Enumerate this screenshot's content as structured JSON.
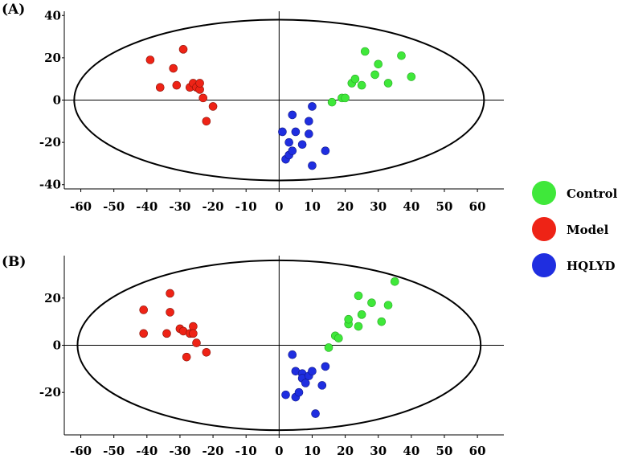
{
  "legend": [
    {
      "name": "Control",
      "color": "#3fe83a"
    },
    {
      "name": "Model",
      "color": "#ee2316"
    },
    {
      "name": "HQLYD",
      "color": "#1f2ee0"
    }
  ],
  "chart_data": [
    {
      "type": "scatter",
      "panel_label": "(A)",
      "xlim": [
        -65,
        68
      ],
      "ylim": [
        -42,
        42
      ],
      "x_ticks": [
        "-60",
        "-50",
        "-40",
        "-30",
        "-20",
        "-10",
        "0",
        "10",
        "20",
        "30",
        "40",
        "50",
        "60"
      ],
      "y_ticks": [
        "40",
        "20",
        "0",
        "-20",
        "-40"
      ],
      "ellipse": {
        "cx": 0,
        "cy": 0,
        "rx": 62,
        "ry": 38
      },
      "series": [
        {
          "name": "Control",
          "points": [
            [
              16,
              -1
            ],
            [
              19,
              1
            ],
            [
              20,
              1
            ],
            [
              22,
              8
            ],
            [
              23,
              10
            ],
            [
              25,
              7
            ],
            [
              26,
              23
            ],
            [
              29,
              12
            ],
            [
              30,
              17
            ],
            [
              33,
              8
            ],
            [
              37,
              21
            ],
            [
              40,
              11
            ]
          ]
        },
        {
          "name": "Model",
          "points": [
            [
              -39,
              19
            ],
            [
              -36,
              6
            ],
            [
              -32,
              15
            ],
            [
              -31,
              7
            ],
            [
              -29,
              24
            ],
            [
              -27,
              6
            ],
            [
              -26,
              8
            ],
            [
              -25,
              6
            ],
            [
              -24,
              5
            ],
            [
              -24,
              8
            ],
            [
              -23,
              1
            ],
            [
              -22,
              -10
            ],
            [
              -20,
              -3
            ]
          ]
        },
        {
          "name": "HQLYD",
          "points": [
            [
              1,
              -15
            ],
            [
              2,
              -28
            ],
            [
              3,
              -20
            ],
            [
              3,
              -26
            ],
            [
              4,
              -7
            ],
            [
              4,
              -24
            ],
            [
              5,
              -15
            ],
            [
              7,
              -21
            ],
            [
              9,
              -10
            ],
            [
              9,
              -16
            ],
            [
              10,
              -3
            ],
            [
              10,
              -31
            ],
            [
              14,
              -24
            ]
          ]
        }
      ]
    },
    {
      "type": "scatter",
      "panel_label": "(B)",
      "xlim": [
        -65,
        68
      ],
      "ylim": [
        -38,
        38
      ],
      "x_ticks": [
        "-60",
        "-50",
        "-40",
        "-30",
        "-20",
        "-10",
        "0",
        "10",
        "20",
        "30",
        "40",
        "50",
        "60"
      ],
      "y_ticks": [
        "20",
        "0",
        "-20"
      ],
      "ellipse": {
        "cx": 0,
        "cy": 0,
        "rx": 61,
        "ry": 36
      },
      "series": [
        {
          "name": "Control",
          "points": [
            [
              15,
              -1
            ],
            [
              17,
              4
            ],
            [
              18,
              3
            ],
            [
              21,
              9
            ],
            [
              21,
              11
            ],
            [
              24,
              8
            ],
            [
              24,
              21
            ],
            [
              25,
              13
            ],
            [
              28,
              18
            ],
            [
              31,
              10
            ],
            [
              33,
              17
            ],
            [
              35,
              27
            ]
          ]
        },
        {
          "name": "Model",
          "points": [
            [
              -41,
              15
            ],
            [
              -41,
              5
            ],
            [
              -34,
              5
            ],
            [
              -33,
              14
            ],
            [
              -33,
              22
            ],
            [
              -30,
              7
            ],
            [
              -29,
              6
            ],
            [
              -28,
              -5
            ],
            [
              -27,
              5
            ],
            [
              -26,
              8
            ],
            [
              -26,
              5
            ],
            [
              -25,
              1
            ],
            [
              -22,
              -3
            ]
          ]
        },
        {
          "name": "HQLYD",
          "points": [
            [
              2,
              -21
            ],
            [
              4,
              -4
            ],
            [
              5,
              -11
            ],
            [
              5,
              -22
            ],
            [
              6,
              -20
            ],
            [
              7,
              -12
            ],
            [
              7,
              -14
            ],
            [
              8,
              -16
            ],
            [
              9,
              -13
            ],
            [
              10,
              -11
            ],
            [
              11,
              -29
            ],
            [
              13,
              -17
            ],
            [
              14,
              -9
            ]
          ]
        }
      ]
    }
  ]
}
